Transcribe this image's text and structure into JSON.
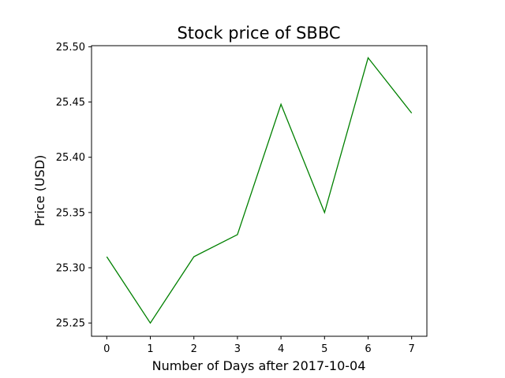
{
  "chart_data": {
    "type": "line",
    "title": "Stock price of SBBC",
    "xlabel": "Number of Days after 2017-10-04",
    "ylabel": "Price (USD)",
    "x": [
      0,
      1,
      2,
      3,
      4,
      5,
      6,
      7
    ],
    "series": [
      {
        "values": [
          25.31,
          25.25,
          25.31,
          25.33,
          25.448,
          25.35,
          25.49,
          25.44
        ],
        "color": "#008000"
      }
    ],
    "xlim": [
      -0.35,
      7.35
    ],
    "ylim": [
      25.238,
      25.501
    ],
    "xticks": [
      0,
      1,
      2,
      3,
      4,
      5,
      6,
      7
    ],
    "xtick_labels": [
      "0",
      "1",
      "2",
      "3",
      "4",
      "5",
      "6",
      "7"
    ],
    "yticks": [
      25.25,
      25.3,
      25.35,
      25.4,
      25.45,
      25.5
    ],
    "ytick_labels": [
      "25.25",
      "25.30",
      "25.35",
      "25.40",
      "25.45",
      "25.50"
    ],
    "grid": false,
    "legend": false
  }
}
